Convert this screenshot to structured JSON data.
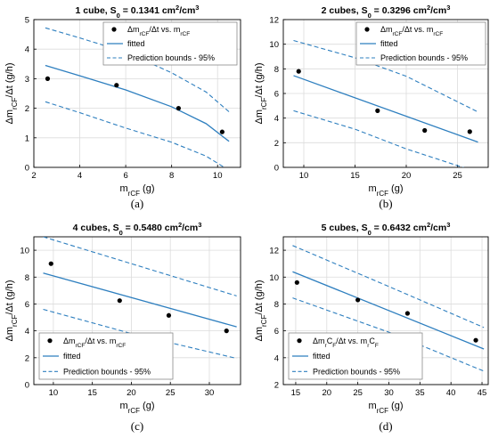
{
  "colors": {
    "fit": "#2e7fbf",
    "bounds": "#2e7fbf",
    "points": "#000000",
    "axes": "#000000",
    "grid": "#dcdcdc"
  },
  "chart_data": [
    {
      "type": "scatter",
      "title_main": "1 cube, S",
      "title_sub": "0",
      "title_rest": " = 0.1341 cm",
      "title_sup1": "2",
      "title_mid": "/cm",
      "title_sup2": "3",
      "caption": "(a)",
      "xlabel_main": "m",
      "xlabel_sub": "rCF",
      "xlabel_unit": " (g)",
      "ylabel_main": "Δm",
      "ylabel_sub": "rCF",
      "ylabel_unit": "/Δt (g/h)",
      "xlim": [
        2,
        11
      ],
      "ylim": [
        0,
        5
      ],
      "xticks": [
        2,
        4,
        6,
        8,
        10
      ],
      "yticks": [
        0,
        1,
        2,
        3,
        4,
        5
      ],
      "legend": {
        "position": "top-right",
        "entries": [
          {
            "kind": "points",
            "label": "Δm",
            "label_sub": "rCF",
            "label_rest": "/Δt vs. m",
            "label_sub2": "rCF"
          },
          {
            "kind": "fit",
            "label": "fitted"
          },
          {
            "kind": "bounds",
            "label": "Prediction bounds - 95%"
          }
        ]
      },
      "points": {
        "x": [
          2.6,
          5.6,
          8.3,
          10.2
        ],
        "y": [
          3.0,
          2.78,
          2.0,
          1.2
        ]
      },
      "fitted": {
        "x": [
          2.5,
          4,
          6,
          8,
          9.5,
          10.5
        ],
        "y": [
          3.45,
          3.1,
          2.62,
          2.05,
          1.48,
          0.88
        ]
      },
      "bound_upper": {
        "x": [
          2.5,
          4,
          6,
          8,
          9.5,
          10.5
        ],
        "y": [
          4.72,
          4.38,
          3.9,
          3.2,
          2.55,
          1.88
        ]
      },
      "bound_lower": {
        "x": [
          2.5,
          4,
          6,
          8,
          9.5,
          10.5
        ],
        "y": [
          2.22,
          1.85,
          1.33,
          0.85,
          0.38,
          -0.1
        ]
      }
    },
    {
      "type": "scatter",
      "title_main": "2 cubes, S",
      "title_sub": "0",
      "title_rest": " = 0.3296 cm",
      "title_sup1": "2",
      "title_mid": "/cm",
      "title_sup2": "3",
      "caption": "(b)",
      "xlabel_main": "m",
      "xlabel_sub": "rCF",
      "xlabel_unit": " (g)",
      "ylabel_main": "Δm",
      "ylabel_sub": "rCF",
      "ylabel_unit": "/Δt (g/h)",
      "xlim": [
        8,
        28
      ],
      "ylim": [
        0,
        12
      ],
      "xticks": [
        10,
        15,
        20,
        25
      ],
      "yticks": [
        0,
        2,
        4,
        6,
        8,
        10,
        12
      ],
      "legend": {
        "position": "top-right",
        "entries": [
          {
            "kind": "points",
            "label": "Δm",
            "label_sub": "rCF",
            "label_rest": "/Δt vs. m",
            "label_sub2": "rCF"
          },
          {
            "kind": "fit",
            "label": "fitted"
          },
          {
            "kind": "bounds",
            "label": "Prediction bounds - 95%"
          }
        ]
      },
      "points": {
        "x": [
          9.5,
          17.2,
          21.8,
          26.2
        ],
        "y": [
          7.8,
          4.6,
          3.0,
          2.9
        ]
      },
      "fitted": {
        "x": [
          9.0,
          27.0
        ],
        "y": [
          7.45,
          2.05
        ]
      },
      "bound_upper": {
        "x": [
          9.0,
          15,
          20,
          27.0
        ],
        "y": [
          10.3,
          8.9,
          7.4,
          4.5
        ]
      },
      "bound_lower": {
        "x": [
          9.0,
          15,
          20,
          27.0
        ],
        "y": [
          4.6,
          3.1,
          1.5,
          -0.4
        ]
      }
    },
    {
      "type": "scatter",
      "title_main": "4 cubes, S",
      "title_sub": "0",
      "title_rest": " = 0.5480 cm",
      "title_sup1": "2",
      "title_mid": "/cm",
      "title_sup2": "3",
      "caption": "(c)",
      "xlabel_main": "m",
      "xlabel_sub": "rCF",
      "xlabel_unit": " (g)",
      "ylabel_main": "Δm",
      "ylabel_sub": "rCF",
      "ylabel_unit": "/Δt (g/h)",
      "xlim": [
        7.5,
        34
      ],
      "ylim": [
        0,
        11
      ],
      "xticks": [
        10,
        15,
        20,
        25,
        30
      ],
      "yticks": [
        0,
        2,
        4,
        6,
        8,
        10
      ],
      "legend": {
        "position": "bottom-left",
        "entries": [
          {
            "kind": "points",
            "label": "Δm",
            "label_sub": "rCF",
            "label_rest": "/Δt vs. m",
            "label_sub2": "rCF"
          },
          {
            "kind": "fit",
            "label": "fitted"
          },
          {
            "kind": "bounds",
            "label": "Prediction bounds - 95%"
          }
        ]
      },
      "points": {
        "x": [
          9.7,
          18.5,
          24.8,
          32.2
        ],
        "y": [
          9.0,
          6.25,
          5.15,
          4.0
        ]
      },
      "fitted": {
        "x": [
          8.7,
          33.5
        ],
        "y": [
          8.3,
          4.3
        ]
      },
      "bound_upper": {
        "x": [
          8.7,
          20,
          33.5
        ],
        "y": [
          11.0,
          9.0,
          6.6
        ]
      },
      "bound_lower": {
        "x": [
          8.7,
          20,
          33.5
        ],
        "y": [
          5.6,
          3.8,
          1.95
        ]
      }
    },
    {
      "type": "scatter",
      "title_main": "5 cubes, S",
      "title_sub": "0",
      "title_rest": " = 0.6432 cm",
      "title_sup1": "2",
      "title_mid": "/cm",
      "title_sup2": "3",
      "caption": "(d)",
      "xlabel_main": "m",
      "xlabel_sub": "rCF",
      "xlabel_unit": " (g)",
      "ylabel_main": "Δm",
      "ylabel_sub": "rCF",
      "ylabel_unit": "/Δt (g/h)",
      "xlim": [
        13,
        46
      ],
      "ylim": [
        2,
        13
      ],
      "xticks": [
        15,
        20,
        25,
        30,
        35,
        40,
        45
      ],
      "yticks": [
        2,
        4,
        6,
        8,
        10,
        12
      ],
      "legend": {
        "position": "bottom-left",
        "entries": [
          {
            "kind": "points",
            "label": "Δm",
            "label_sub": "r",
            "label_mid": "C",
            "label_sub_b": "F",
            "label_rest": "/Δt vs. m",
            "label_sub2": "r",
            "label_mid2": "C",
            "label_sub2_b": "F"
          },
          {
            "kind": "fit",
            "label": "fitted"
          },
          {
            "kind": "bounds",
            "label": "Prediction bounds - 95%"
          }
        ]
      },
      "points": {
        "x": [
          15.2,
          25.0,
          33.0,
          44.0
        ],
        "y": [
          9.6,
          8.3,
          7.3,
          5.3
        ]
      },
      "fitted": {
        "x": [
          14.5,
          45.3
        ],
        "y": [
          10.4,
          4.65
        ]
      },
      "bound_upper": {
        "x": [
          14.5,
          30,
          45.3
        ],
        "y": [
          12.35,
          9.3,
          6.25
        ]
      },
      "bound_lower": {
        "x": [
          14.5,
          30,
          45.3
        ],
        "y": [
          8.45,
          5.9,
          3.0
        ]
      }
    }
  ]
}
